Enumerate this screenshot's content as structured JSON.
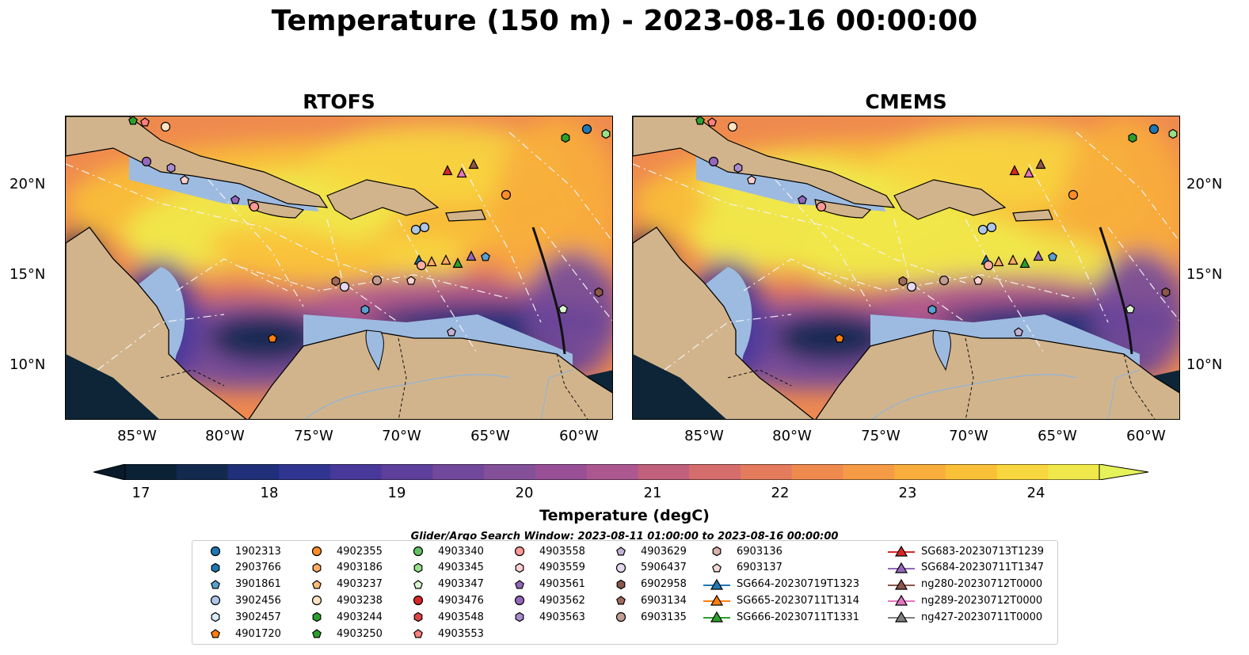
{
  "title": "Temperature (150 m) - 2023-08-16 00:00:00",
  "panels": [
    {
      "title": "RTOFS"
    },
    {
      "title": "CMEMS"
    }
  ],
  "axes": {
    "lon_ticks": [
      "85°W",
      "80°W",
      "75°W",
      "70°W",
      "65°W",
      "60°W"
    ],
    "lat_ticks": [
      "20°N",
      "15°N",
      "10°N"
    ]
  },
  "colorbar": {
    "label": "Temperature (degC)",
    "ticks": [
      "17",
      "18",
      "19",
      "20",
      "21",
      "22",
      "23",
      "24"
    ],
    "colors": [
      "#0b2236",
      "#122a4e",
      "#1f2f7a",
      "#2f3590",
      "#47389a",
      "#5e3f9c",
      "#72489c",
      "#84509a",
      "#984f96",
      "#ad5790",
      "#c0607c",
      "#d46d6c",
      "#e37b5c",
      "#ef8a4f",
      "#f59b46",
      "#f8ad3c",
      "#fac038",
      "#f8d63f",
      "#f0e74b"
    ],
    "extend_low": "#081b2a",
    "extend_high": "#e6f25a"
  },
  "search_window": "Glider/Argo Search Window: 2023-08-11 01:00:00 to 2023-08-16 00:00:00",
  "legend": {
    "columns": [
      [
        {
          "label": "1902313",
          "marker": "circle",
          "color": "#1f77b4"
        },
        {
          "label": "2903766",
          "marker": "hexagon",
          "color": "#1f77b4"
        },
        {
          "label": "3901861",
          "marker": "pentagon",
          "color": "#5aa0d0"
        },
        {
          "label": "3902456",
          "marker": "circle",
          "color": "#aec7e8"
        },
        {
          "label": "3902457",
          "marker": "hexagon",
          "color": "#d6ebf7"
        },
        {
          "label": "4901720",
          "marker": "pentagon",
          "color": "#ff7f0e"
        }
      ],
      [
        {
          "label": "4902355",
          "marker": "circle",
          "color": "#ff8c2a"
        },
        {
          "label": "4903186",
          "marker": "hexagon",
          "color": "#ffab66"
        },
        {
          "label": "4903237",
          "marker": "pentagon",
          "color": "#ffbb78"
        },
        {
          "label": "4903238",
          "marker": "circle",
          "color": "#ffe3c2"
        },
        {
          "label": "4903244",
          "marker": "hexagon",
          "color": "#2ca02c"
        },
        {
          "label": "4903250",
          "marker": "pentagon",
          "color": "#2ca02c"
        }
      ],
      [
        {
          "label": "4903340",
          "marker": "circle",
          "color": "#64c064"
        },
        {
          "label": "4903345",
          "marker": "hexagon",
          "color": "#98df8a"
        },
        {
          "label": "4903347",
          "marker": "pentagon",
          "color": "#d9f5d0"
        },
        {
          "label": "4903476",
          "marker": "circle",
          "color": "#d62728"
        },
        {
          "label": "4903548",
          "marker": "hexagon",
          "color": "#e04444"
        },
        {
          "label": "4903553",
          "marker": "pentagon",
          "color": "#ff7f7f"
        }
      ],
      [
        {
          "label": "4903558",
          "marker": "circle",
          "color": "#ff9896"
        },
        {
          "label": "4903559",
          "marker": "hexagon",
          "color": "#ffd0cf"
        },
        {
          "label": "4903561",
          "marker": "pentagon",
          "color": "#9467bd"
        },
        {
          "label": "4903562",
          "marker": "circle",
          "color": "#9467bd"
        },
        {
          "label": "4903563",
          "marker": "hexagon",
          "color": "#a88bd0"
        }
      ],
      [
        {
          "label": "4903629",
          "marker": "pentagon",
          "color": "#c5b0d5"
        },
        {
          "label": "5906437",
          "marker": "circle",
          "color": "#e6d8f2"
        },
        {
          "label": "6902958",
          "marker": "hexagon",
          "color": "#8c564b"
        },
        {
          "label": "6903134",
          "marker": "pentagon",
          "color": "#a06a5c"
        },
        {
          "label": "6903135",
          "marker": "circle",
          "color": "#c49c94"
        }
      ],
      [
        {
          "label": "6903136",
          "marker": "hexagon",
          "color": "#dbb0a8"
        },
        {
          "label": "6903137",
          "marker": "pentagon",
          "color": "#f5d8d2"
        },
        {
          "label": "SG664-20230719T1323",
          "marker": "triangle-line",
          "color": "#1f77b4"
        },
        {
          "label": "SG665-20230711T1314",
          "marker": "triangle-line",
          "color": "#ff7f0e"
        },
        {
          "label": "SG666-20230711T1331",
          "marker": "triangle-line",
          "color": "#2ca02c"
        }
      ],
      [
        {
          "label": "SG683-20230713T1239",
          "marker": "triangle-line",
          "color": "#d62728"
        },
        {
          "label": "SG684-20230711T1347",
          "marker": "triangle-line",
          "color": "#9467bd"
        },
        {
          "label": "ng280-20230712T0000",
          "marker": "triangle-line",
          "color": "#8c564b"
        },
        {
          "label": "ng289-20230712T0000",
          "marker": "triangle-line",
          "color": "#e377c2"
        },
        {
          "label": "ng427-20230711T0000",
          "marker": "triangle-line",
          "color": "#7f7f7f"
        }
      ]
    ]
  },
  "map_colors": {
    "land": "#d2b48c",
    "shelf": "#9dbbe0",
    "deep_cold": "#0d2537"
  }
}
